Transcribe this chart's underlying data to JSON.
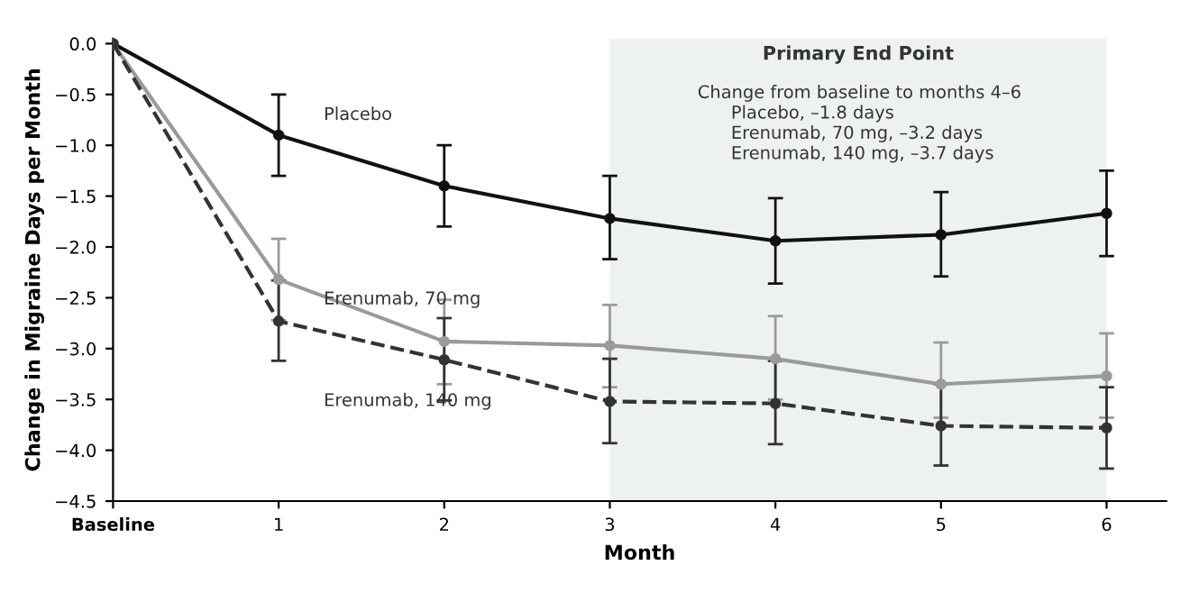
{
  "chart_data": {
    "type": "line",
    "xlabel": "Month",
    "ylabel": "Change in Migraine Days per Month",
    "x": [
      0,
      1,
      2,
      3,
      4,
      5,
      6
    ],
    "xlim": [
      0,
      6.36
    ],
    "xticks": [
      {
        "value": 0,
        "label": "Baseline"
      },
      1,
      2,
      3,
      4,
      5,
      6
    ],
    "ylim": [
      -4.5,
      0.05
    ],
    "yticks": [
      {
        "value": 0,
        "label": "0.0"
      },
      {
        "value": -0.5,
        "label": "−0.5"
      },
      {
        "value": -1,
        "label": "−1.0"
      },
      {
        "value": -1.5,
        "label": "−1.5"
      },
      {
        "value": -2,
        "label": "−2.0"
      },
      {
        "value": -2.5,
        "label": "−2.5"
      },
      {
        "value": -3,
        "label": "−3.0"
      },
      {
        "value": -3.5,
        "label": "−3.5"
      },
      {
        "value": -4,
        "label": "−4.0"
      },
      {
        "value": -4.5,
        "label": "−4.5"
      }
    ],
    "series": [
      {
        "name": "Placebo",
        "color": "#111111",
        "line_style": "solid",
        "values": [
          0,
          -0.9,
          -1.4,
          -1.72,
          -1.94,
          -1.88,
          -1.67
        ],
        "errors": [
          null,
          [
            -1.3,
            -0.5
          ],
          [
            -1.8,
            -1.0
          ],
          [
            -2.12,
            -1.3
          ],
          [
            -2.36,
            -1.52
          ],
          [
            -2.29,
            -1.46
          ],
          [
            -2.09,
            -1.25
          ]
        ]
      },
      {
        "name": "Erenumab, 70 mg",
        "color": "#9a9a9a",
        "line_style": "solid",
        "values": [
          0,
          -2.32,
          -2.93,
          -2.97,
          -3.1,
          -3.35,
          -3.27
        ],
        "errors": [
          null,
          [
            -2.72,
            -1.92
          ],
          [
            -3.35,
            -2.52
          ],
          [
            -3.38,
            -2.57
          ],
          [
            -3.5,
            -2.68
          ],
          [
            -3.68,
            -2.94
          ],
          [
            -3.68,
            -2.85
          ]
        ]
      },
      {
        "name": "Erenumab, 140 mg",
        "color": "#333333",
        "line_style": "dashed",
        "values": [
          0,
          -2.73,
          -3.11,
          -3.52,
          -3.54,
          -3.76,
          -3.78
        ],
        "errors": [
          null,
          [
            -3.12,
            -2.33
          ],
          [
            -3.51,
            -2.7
          ],
          [
            -3.93,
            -3.1
          ],
          [
            -3.94,
            -3.12
          ],
          [
            -4.15,
            -3.35
          ],
          [
            -4.18,
            -3.38
          ]
        ]
      }
    ],
    "bands": [
      {
        "axis": "x",
        "from": 3,
        "to": 6,
        "label": "Primary End Point",
        "color": "#eef2ee"
      }
    ],
    "annotations": [
      "Change from baseline to months 4–6\n      Placebo, –1.8 days\n      Erenumab, 70 mg, –3.2 days\n      Erenumab, 140 mg, –3.7 days"
    ],
    "marker": "circle",
    "grid": false,
    "legend": false
  }
}
